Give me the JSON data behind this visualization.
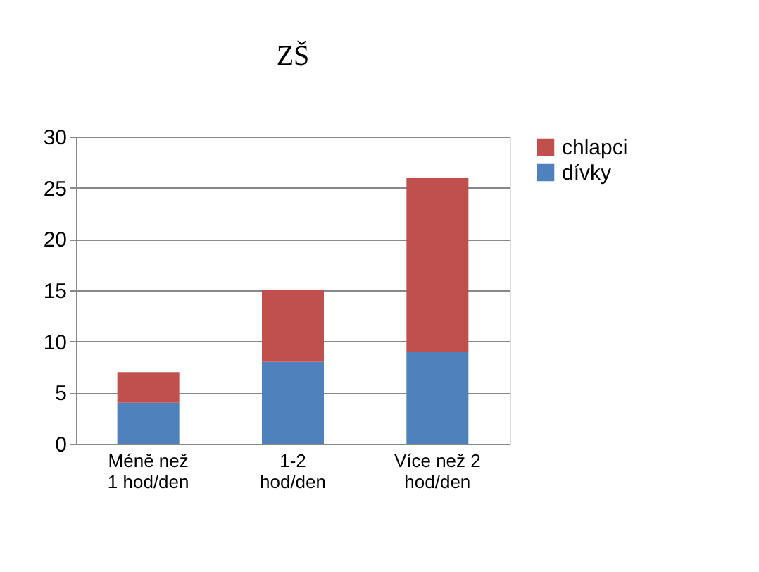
{
  "chart_data": {
    "type": "bar",
    "title": "ZŠ",
    "stacked": true,
    "categories": [
      "Méně než\n1 hod/den",
      "1-2\nhod/den",
      "Více než 2\nhod/den"
    ],
    "series": [
      {
        "name": "dívky",
        "color": "#4f81bd",
        "values": [
          4,
          8,
          9
        ]
      },
      {
        "name": "chlapci",
        "color": "#c0504d",
        "values": [
          3,
          7,
          17
        ]
      }
    ],
    "ylim": [
      0,
      30
    ],
    "yticks": [
      0,
      5,
      10,
      15,
      20,
      25,
      30
    ],
    "grid": "y",
    "legend": "right"
  }
}
